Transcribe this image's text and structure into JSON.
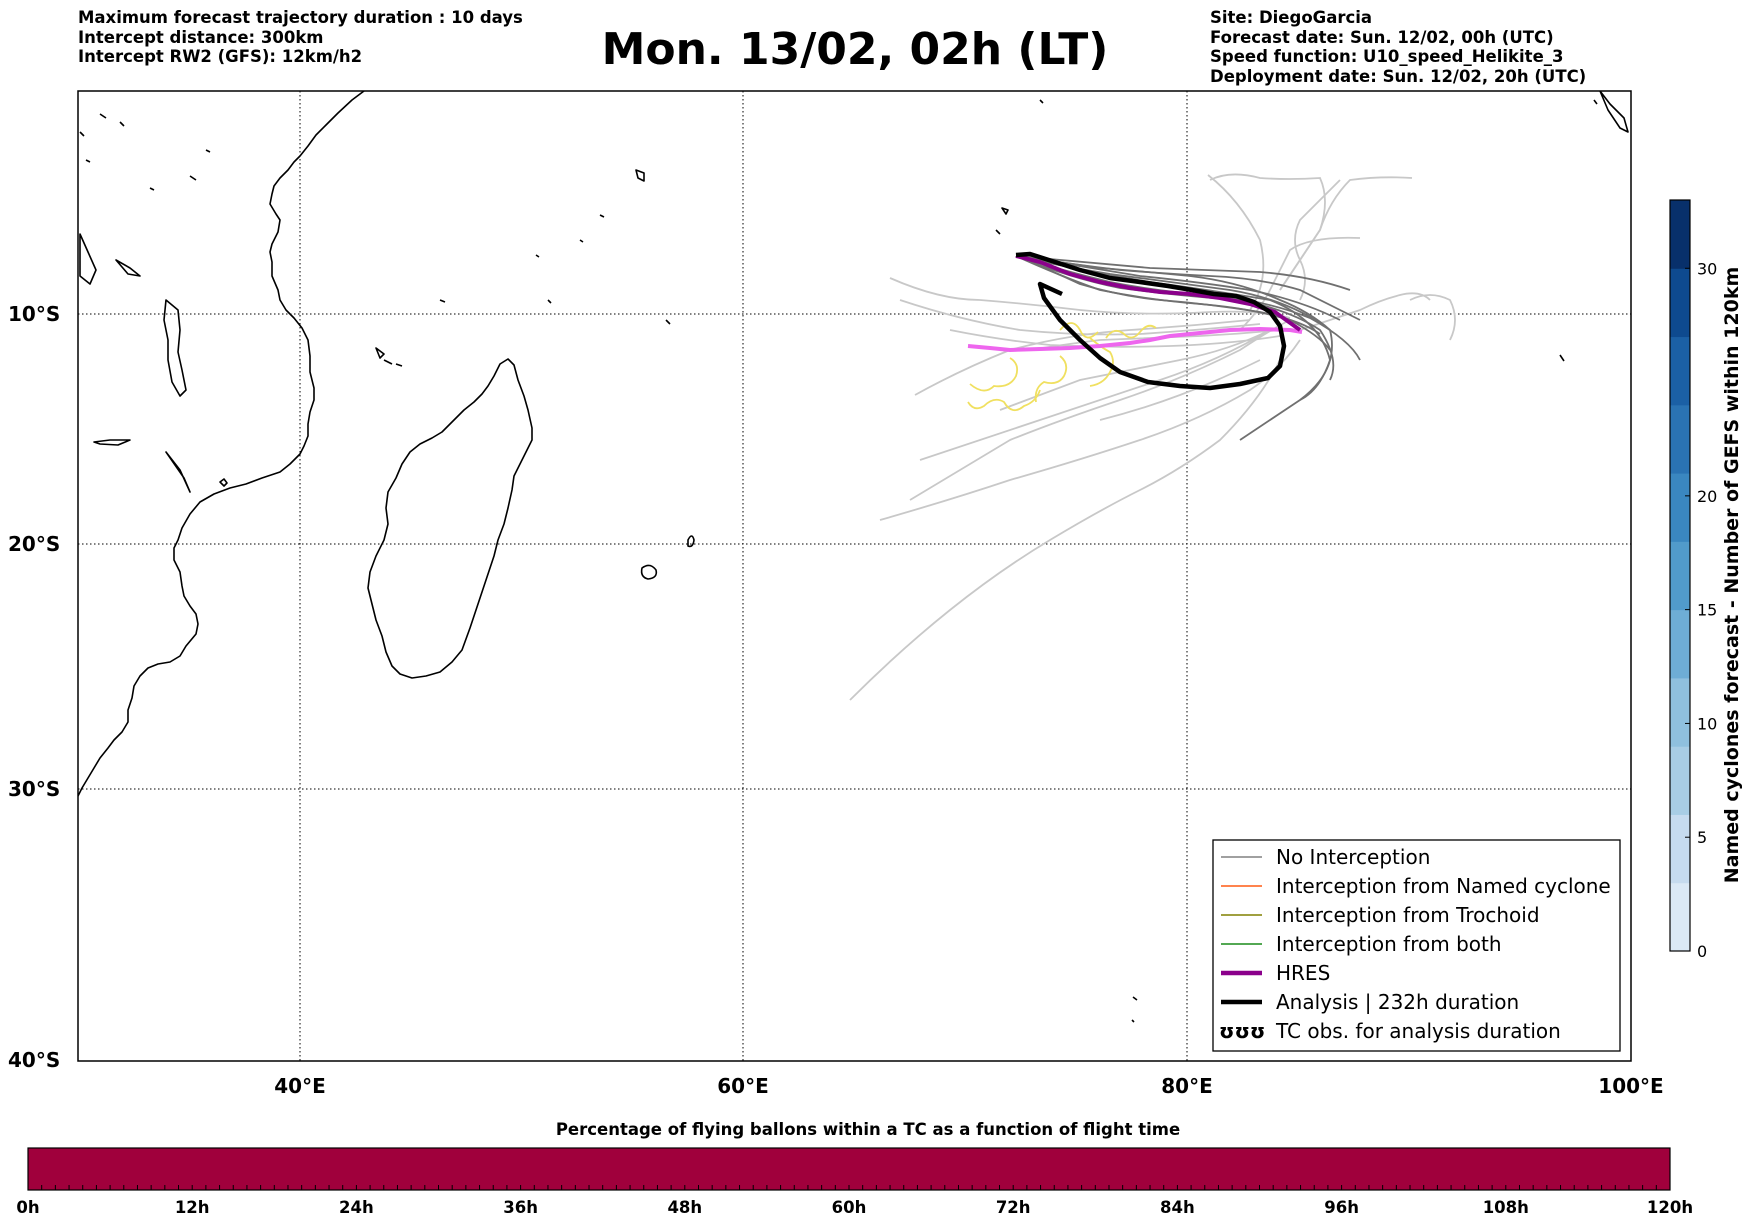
{
  "header": {
    "left": [
      "Maximum forecast trajectory duration : 10 days",
      "Intercept distance: 300km",
      "Intercept RW2 (GFS):  12km/h2"
    ],
    "title": "Mon. 13/02, 02h (LT)",
    "right": [
      "Site: DiegoGarcia",
      "Forecast date: Sun. 12/02, 00h (UTC)",
      "Speed function: U10_speed_Helikite_3",
      "Deployment date: Sun. 12/02, 20h (UTC)"
    ]
  },
  "map": {
    "lon_range": [
      30,
      100
    ],
    "lat_range": [
      -40,
      1
    ],
    "lat_ticks": [
      {
        "value": -10,
        "label": "10°S"
      },
      {
        "value": -20,
        "label": "20°S"
      },
      {
        "value": -30,
        "label": "30°S"
      },
      {
        "value": -40,
        "label": "40°S"
      }
    ],
    "lon_ticks": [
      {
        "value": 40,
        "label": "40°E"
      },
      {
        "value": 60,
        "label": "60°E"
      },
      {
        "value": 80,
        "label": "80°E"
      },
      {
        "value": 100,
        "label": "100°E"
      }
    ],
    "gridlines": "dotted",
    "colors": {
      "no_interception": "#808080",
      "light_ensemble": "#c8c8c8",
      "named_cyclone": "#ff5a14",
      "trochoid": "#808000",
      "both": "#1a8c1a",
      "hres": "#8b008b",
      "analysis": "#000000",
      "tc_obs": "#f0e060",
      "alt_track": "#ee66ee"
    }
  },
  "legend": {
    "position": "lower-right",
    "items": [
      {
        "label": "No Interception",
        "color": "#808080",
        "style": "thin"
      },
      {
        "label": "Interception from Named cyclone",
        "color": "#ff5a14",
        "style": "thin"
      },
      {
        "label": "Interception from Trochoid",
        "color": "#808000",
        "style": "thin"
      },
      {
        "label": "Interception from both",
        "color": "#1a8c1a",
        "style": "thin"
      },
      {
        "label": "HRES",
        "color": "#8b008b",
        "style": "thick"
      },
      {
        "label": "Analysis | 232h duration",
        "color": "#000000",
        "style": "thick"
      },
      {
        "label": "TC obs. for analysis duration",
        "color": "#000000",
        "style": "symbol",
        "symbol": "ʊʊʊ"
      }
    ]
  },
  "colorbar_right": {
    "label": "Named cyclones forecast - Number of GEFS within 120km",
    "range": [
      0,
      33
    ],
    "ticks": [
      {
        "value": 0,
        "label": "0"
      },
      {
        "value": 5,
        "label": "5"
      },
      {
        "value": 10,
        "label": "10"
      },
      {
        "value": 15,
        "label": "15"
      },
      {
        "value": 20,
        "label": "20"
      },
      {
        "value": 30,
        "label": "30"
      }
    ],
    "colors": [
      "#dbe9f6",
      "#c6dbef",
      "#a8cde5",
      "#8fc0de",
      "#6eadd5",
      "#519bcb",
      "#3a87c0",
      "#2a73b3",
      "#1b60a5",
      "#0e4a8f",
      "#08306b"
    ]
  },
  "colorbar_bottom": {
    "title": "Percentage of flying ballons within a TC as a function of flight time",
    "color": "#a0003c",
    "ticks": [
      "0h",
      "12h",
      "24h",
      "36h",
      "48h",
      "60h",
      "72h",
      "84h",
      "96h",
      "108h",
      "120h"
    ]
  }
}
